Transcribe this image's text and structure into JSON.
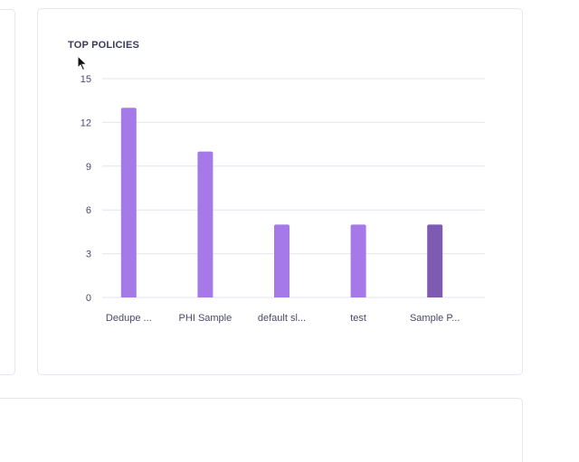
{
  "top_policies": {
    "title": "TOP POLICIES"
  },
  "colors": {
    "bar": "#a57ae8",
    "bar_highlight": "#7e5bb2",
    "grid": "#e4e4ee",
    "axis_text": "#4a4a6a"
  },
  "chart_data": {
    "type": "bar",
    "title": "TOP POLICIES",
    "categories": [
      "Dedupe ...",
      "PHI Sample",
      "default sl...",
      "test",
      "Sample P..."
    ],
    "values": [
      13,
      10,
      5,
      5,
      5
    ],
    "highlighted_index": 4,
    "ylim": [
      0,
      15
    ],
    "yticks": [
      0,
      3,
      6,
      9,
      12,
      15
    ],
    "grid": true,
    "xlabel": "",
    "ylabel": ""
  }
}
